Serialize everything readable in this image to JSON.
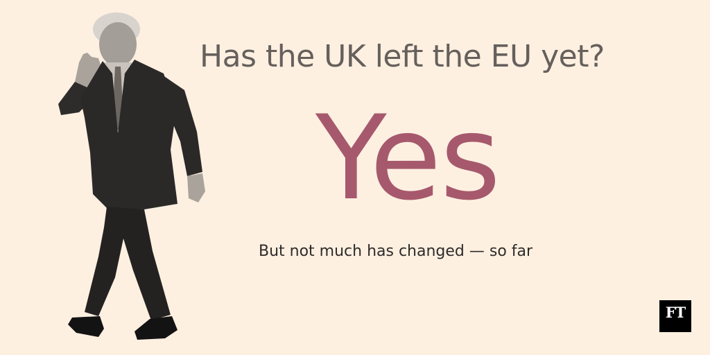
{
  "headline": {
    "question": "Has the UK left the EU yet?",
    "answer": "Yes",
    "subtitle": "But not much has changed — so far"
  },
  "brand": {
    "logo_text": "FT"
  },
  "photo": {
    "description_icon": "waving-man-cutout"
  },
  "colors": {
    "background": "#fdf0e1",
    "question_text": "#66605c",
    "answer_accent": "#a6596c",
    "subtitle_text": "#2e2b29",
    "logo_background": "#000000",
    "logo_text": "#ffffff"
  }
}
